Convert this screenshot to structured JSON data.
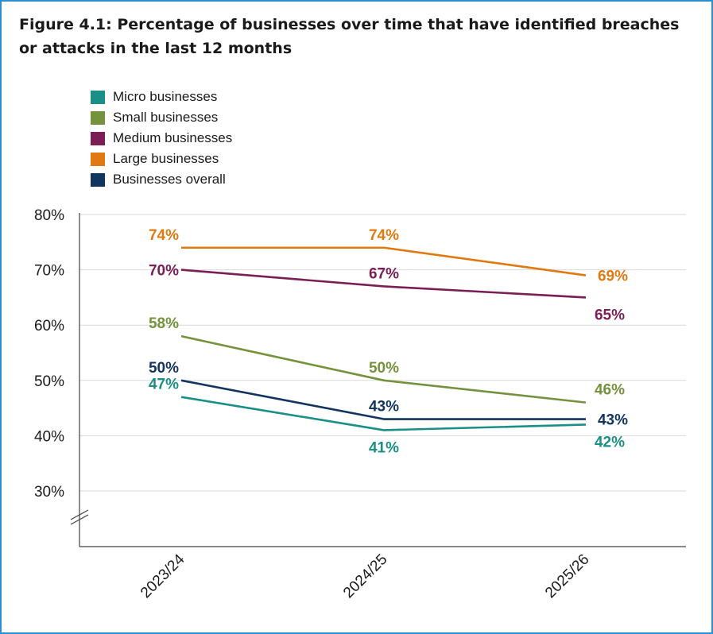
{
  "chart_data": {
    "type": "line",
    "title": "Figure 4.1: Percentage of businesses over time that have identified breaches or attacks in the last 12 months",
    "xlabel": "",
    "ylabel": "",
    "categories": [
      "2023/24",
      "2024/25",
      "2025/26"
    ],
    "y_ticks": [
      "30%",
      "40%",
      "50%",
      "60%",
      "70%",
      "80%"
    ],
    "ylim": [
      30,
      80
    ],
    "y_axis_break": true,
    "grid": true,
    "legend_position": "top-left",
    "series": [
      {
        "name": "Micro businesses",
        "color": "#1a8f86",
        "values": [
          47,
          41,
          42
        ],
        "labels": [
          "47%",
          "41%",
          "42%"
        ],
        "label_pos": [
          "above",
          "below",
          "below"
        ]
      },
      {
        "name": "Small businesses",
        "color": "#75923c",
        "values": [
          58,
          50,
          46
        ],
        "labels": [
          "58%",
          "50%",
          "46%"
        ],
        "label_pos": [
          "above",
          "above",
          "above"
        ]
      },
      {
        "name": "Medium businesses",
        "color": "#7b1e56",
        "values": [
          70,
          67,
          65
        ],
        "labels": [
          "70%",
          "67%",
          "65%"
        ],
        "label_pos": [
          "center",
          "above",
          "below"
        ]
      },
      {
        "name": "Large businesses",
        "color": "#e07a10",
        "values": [
          74,
          74,
          69
        ],
        "labels": [
          "74%",
          "74%",
          "69%"
        ],
        "label_pos": [
          "above",
          "above",
          "center"
        ]
      },
      {
        "name": "Businesses overall",
        "color": "#12355f",
        "values": [
          50,
          43,
          43
        ],
        "labels": [
          "50%",
          "43%",
          "43%"
        ],
        "label_pos": [
          "above",
          "above",
          "center"
        ]
      }
    ]
  }
}
